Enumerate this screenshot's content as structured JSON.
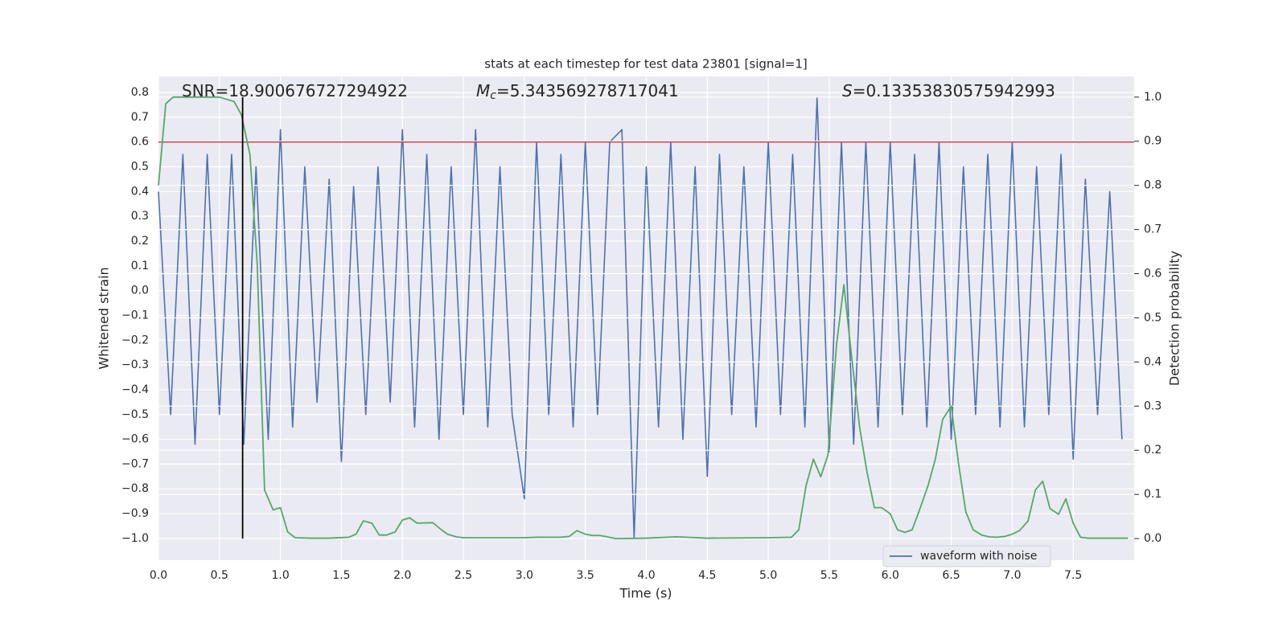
{
  "chart_data": {
    "type": "line",
    "title": "stats at each timestep for test data 23801 [signal=1]",
    "xlabel": "Time (s)",
    "ylabel": "Whitened strain",
    "y2label": "Detection probability",
    "xlim": [
      0,
      8.0
    ],
    "ylim": [
      -1.088,
      0.865
    ],
    "y2lim": [
      -0.049,
      1.047
    ],
    "xticks": [
      {
        "value": 0,
        "label": "0.0"
      },
      {
        "value": 0.5,
        "label": "0.5"
      },
      {
        "value": 1,
        "label": "1.0"
      },
      {
        "value": 1.5,
        "label": "1.5"
      },
      {
        "value": 2,
        "label": "2.0"
      },
      {
        "value": 2.5,
        "label": "2.5"
      },
      {
        "value": 3,
        "label": "3.0"
      },
      {
        "value": 3.5,
        "label": "3.5"
      },
      {
        "value": 4,
        "label": "4.0"
      },
      {
        "value": 4.5,
        "label": "4.5"
      },
      {
        "value": 5,
        "label": "5.0"
      },
      {
        "value": 5.5,
        "label": "5.5"
      },
      {
        "value": 6,
        "label": "6.0"
      },
      {
        "value": 6.5,
        "label": "6.5"
      },
      {
        "value": 7,
        "label": "7.0"
      },
      {
        "value": 7.5,
        "label": "7.5"
      }
    ],
    "yticks": [
      {
        "value": -1.0,
        "label": "−1.0"
      },
      {
        "value": -0.9,
        "label": "−0.9"
      },
      {
        "value": -0.8,
        "label": "−0.8"
      },
      {
        "value": -0.7,
        "label": "−0.7"
      },
      {
        "value": -0.6,
        "label": "−0.6"
      },
      {
        "value": -0.5,
        "label": "−0.5"
      },
      {
        "value": -0.4,
        "label": "−0.4"
      },
      {
        "value": -0.3,
        "label": "−0.3"
      },
      {
        "value": -0.2,
        "label": "−0.2"
      },
      {
        "value": -0.1,
        "label": "−0.1"
      },
      {
        "value": 0,
        "label": "0.0"
      },
      {
        "value": 0.1,
        "label": "0.1"
      },
      {
        "value": 0.2,
        "label": "0.2"
      },
      {
        "value": 0.3,
        "label": "0.3"
      },
      {
        "value": 0.4,
        "label": "0.4"
      },
      {
        "value": 0.5,
        "label": "0.5"
      },
      {
        "value": 0.6,
        "label": "0.6"
      },
      {
        "value": 0.7,
        "label": "0.7"
      },
      {
        "value": 0.8,
        "label": "0.8"
      }
    ],
    "y2ticks": [
      {
        "value": 0,
        "label": "0.0"
      },
      {
        "value": 0.1,
        "label": "0.1"
      },
      {
        "value": 0.2,
        "label": "0.2"
      },
      {
        "value": 0.3,
        "label": "0.3"
      },
      {
        "value": 0.4,
        "label": "0.4"
      },
      {
        "value": 0.5,
        "label": "0.5"
      },
      {
        "value": 0.6,
        "label": "0.6"
      },
      {
        "value": 0.7,
        "label": "0.7"
      },
      {
        "value": 0.8,
        "label": "0.8"
      },
      {
        "value": 0.9,
        "label": "0.9"
      },
      {
        "value": 1,
        "label": "1.0"
      }
    ],
    "grid": true,
    "legend": "lower right",
    "annotations": [
      {
        "text": "SNR=18.900676727294922"
      },
      {
        "symbol": "M",
        "subscript": "c",
        "text": "=5.343569278717041"
      },
      {
        "symbol": "S",
        "text": "=0.13353830575942993"
      }
    ],
    "hlines": [
      {
        "y": 0.6,
        "color": "#c44e52"
      }
    ],
    "vlines": [
      {
        "x": 0.69,
        "ymin": 0,
        "ymax": 1,
        "axis": "y2",
        "color": "#000000"
      }
    ],
    "series": [
      {
        "name": "waveform with noise",
        "color": "#4c72b0",
        "x": [
          0.0,
          0.1,
          0.2,
          0.3,
          0.4,
          0.5,
          0.6,
          0.7,
          0.8,
          0.9,
          1.0,
          1.1,
          1.2,
          1.3,
          1.4,
          1.5,
          1.6,
          1.7,
          1.8,
          1.9,
          2.0,
          2.1,
          2.2,
          2.3,
          2.4,
          2.5,
          2.6,
          2.7,
          2.8,
          2.9,
          3.0,
          3.1,
          3.2,
          3.3,
          3.4,
          3.5,
          3.6,
          3.7,
          3.8,
          3.9,
          4.0,
          4.1,
          4.2,
          4.3,
          4.4,
          4.5,
          4.6,
          4.7,
          4.8,
          4.9,
          5.0,
          5.1,
          5.2,
          5.3,
          5.4,
          5.5,
          5.6,
          5.7,
          5.8,
          5.9,
          6.0,
          6.1,
          6.2,
          6.3,
          6.4,
          6.5,
          6.6,
          6.7,
          6.8,
          6.9,
          7.0,
          7.1,
          7.2,
          7.3,
          7.4,
          7.5,
          7.6,
          7.7,
          7.8,
          7.9
        ],
        "values": [
          0.4,
          -0.5,
          0.55,
          -0.62,
          0.55,
          -0.5,
          0.55,
          -0.62,
          0.5,
          -0.6,
          0.65,
          -0.55,
          0.5,
          -0.45,
          0.45,
          -0.69,
          0.42,
          -0.5,
          0.5,
          -0.45,
          0.65,
          -0.55,
          0.55,
          -0.6,
          0.5,
          -0.5,
          0.65,
          -0.55,
          0.5,
          -0.5,
          -0.84,
          0.6,
          -0.5,
          0.55,
          -0.55,
          0.6,
          -0.5,
          0.6,
          0.65,
          -1.0,
          0.5,
          -0.55,
          0.6,
          -0.6,
          0.5,
          -0.75,
          0.55,
          -0.5,
          0.5,
          -0.55,
          0.6,
          -0.5,
          0.55,
          -0.55,
          0.78,
          -0.65,
          0.6,
          -0.62,
          0.6,
          -0.55,
          0.6,
          -0.5,
          0.55,
          -0.55,
          0.6,
          -0.6,
          0.5,
          -0.5,
          0.55,
          -0.55,
          0.6,
          -0.55,
          0.5,
          -0.5,
          0.55,
          -0.68,
          0.45,
          -0.5,
          0.4,
          -0.6
        ]
      },
      {
        "color": "#55a868",
        "axis": "y2",
        "x": [
          0.0,
          0.06,
          0.12,
          0.25,
          0.37,
          0.5,
          0.62,
          0.68,
          0.75,
          0.81,
          0.87,
          0.94,
          1.0,
          1.06,
          1.12,
          1.25,
          1.4,
          1.56,
          1.62,
          1.68,
          1.75,
          1.81,
          1.87,
          1.94,
          2.0,
          2.06,
          2.12,
          2.25,
          2.31,
          2.37,
          2.44,
          2.5,
          2.75,
          3.0,
          3.1,
          3.2,
          3.3,
          3.37,
          3.43,
          3.5,
          3.56,
          3.62,
          3.68,
          3.75,
          4.0,
          4.25,
          4.5,
          5.0,
          5.19,
          5.25,
          5.31,
          5.37,
          5.43,
          5.49,
          5.56,
          5.62,
          5.68,
          5.75,
          5.81,
          5.87,
          5.93,
          6.0,
          6.06,
          6.12,
          6.18,
          6.24,
          6.31,
          6.37,
          6.43,
          6.5,
          6.56,
          6.62,
          6.68,
          6.75,
          6.81,
          6.87,
          6.94,
          7.0,
          7.06,
          7.13,
          7.19,
          7.25,
          7.31,
          7.38,
          7.44,
          7.5,
          7.56,
          7.62,
          7.95
        ],
        "values": [
          0.8,
          0.985,
          1.0,
          1.0,
          1.0,
          1.0,
          0.99,
          0.96,
          0.87,
          0.62,
          0.11,
          0.065,
          0.07,
          0.015,
          0.002,
          0.001,
          0.001,
          0.003,
          0.01,
          0.04,
          0.035,
          0.008,
          0.008,
          0.015,
          0.042,
          0.047,
          0.035,
          0.036,
          0.022,
          0.01,
          0.004,
          0.002,
          0.002,
          0.002,
          0.003,
          0.003,
          0.003,
          0.005,
          0.018,
          0.01,
          0.007,
          0.007,
          0.004,
          0.0,
          0.001,
          0.004,
          0.001,
          0.002,
          0.003,
          0.02,
          0.12,
          0.18,
          0.14,
          0.19,
          0.44,
          0.575,
          0.42,
          0.25,
          0.15,
          0.07,
          0.07,
          0.056,
          0.02,
          0.014,
          0.02,
          0.065,
          0.12,
          0.18,
          0.27,
          0.3,
          0.17,
          0.06,
          0.02,
          0.008,
          0.004,
          0.003,
          0.005,
          0.01,
          0.018,
          0.04,
          0.11,
          0.13,
          0.068,
          0.055,
          0.09,
          0.035,
          0.003,
          0.001,
          0.001
        ]
      }
    ]
  }
}
